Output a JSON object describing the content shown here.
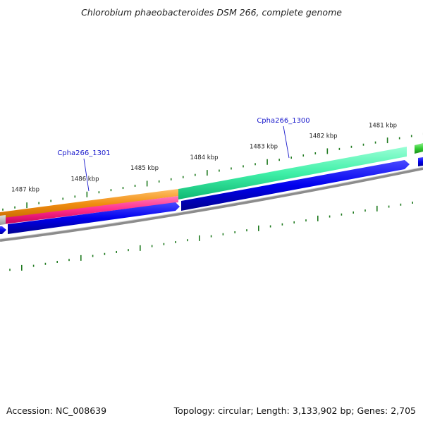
{
  "title": "Chlorobium phaeobacteroides DSM 266, complete genome",
  "footer": {
    "accession": "Accession: NC_008639",
    "summary": "Topology: circular; Length: 3,133,902 bp; Genes: 2,705"
  },
  "ticks": [
    {
      "label": "1481 kbp",
      "kbp": 1481
    },
    {
      "label": "1482 kbp",
      "kbp": 1482
    },
    {
      "label": "1483 kbp",
      "kbp": 1483
    },
    {
      "label": "1484 kbp",
      "kbp": 1484
    },
    {
      "label": "1485 kbp",
      "kbp": 1485
    },
    {
      "label": "1486 kbp",
      "kbp": 1486
    },
    {
      "label": "1487 kbp",
      "kbp": 1487
    }
  ],
  "gene_labels": [
    {
      "label": "Cpha266_1300",
      "gene": "Cpha266_1300"
    },
    {
      "label": "Cpha266_1301",
      "gene": "Cpha266_1301"
    }
  ],
  "colors": {
    "tick": "#1f7a1f",
    "gene_label": "#1a1acc",
    "cds": "#0000ee",
    "gene_1300": "#3ff0a8",
    "gene_1301_orange": "#f59a1a",
    "gene_1301_pink": "#ff2b8a",
    "neighbor": "#33cc33",
    "backbone": "#888888"
  }
}
